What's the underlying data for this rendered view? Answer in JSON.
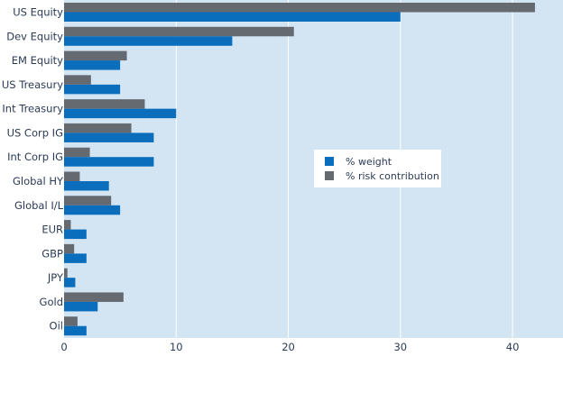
{
  "chart_data": {
    "type": "bar",
    "orientation": "horizontal",
    "title": "",
    "xlabel": "",
    "ylabel": "",
    "categories": [
      "US Equity",
      "Dev Equity",
      "EM Equity",
      "US Treasury",
      "Int Treasury",
      "US Corp IG",
      "Int Corp IG",
      "Global HY",
      "Global I/L",
      "EUR",
      "GBP",
      "JPY",
      "Gold",
      "Oil"
    ],
    "series": [
      {
        "name": "% weight",
        "color": "#0a6ebd",
        "values": [
          30,
          15,
          5,
          5,
          10,
          8,
          8,
          4,
          5,
          2,
          2,
          1,
          3,
          2
        ]
      },
      {
        "name": "% risk contribution",
        "color": "#656970",
        "values": [
          42,
          20.5,
          5.6,
          2.4,
          7.2,
          6,
          2.3,
          1.4,
          4.2,
          0.6,
          0.9,
          0.3,
          5.3,
          1.2
        ]
      }
    ],
    "xlim": [
      0,
      44.5
    ],
    "xticks": [
      0,
      10,
      20,
      30,
      40
    ],
    "grid": true,
    "legend_position": "center-right",
    "plot_background": "#d3e5f3"
  }
}
